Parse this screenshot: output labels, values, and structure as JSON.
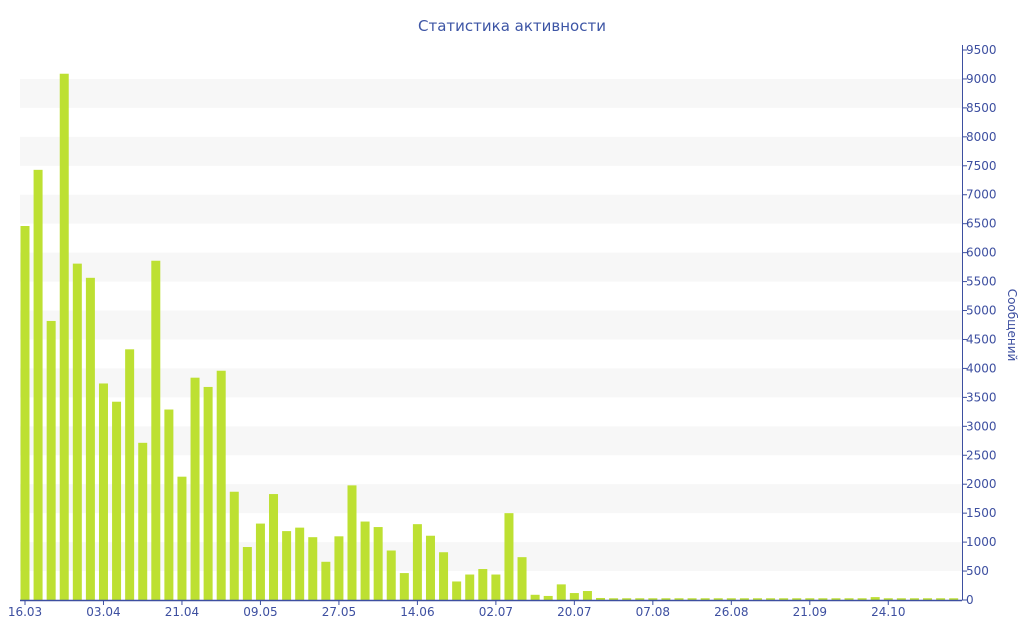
{
  "chart_data": {
    "type": "bar",
    "title": "Статистика активности",
    "xlabel": "",
    "ylabel": "Сообщений",
    "ylim": [
      0,
      9500
    ],
    "ytick_step": 500,
    "y_axis_side": "right",
    "grid": "alternating horizontal bands",
    "bar_color": "#bde032",
    "axis_color": "#3d4fa0",
    "x_tick_labels": [
      {
        "index": 0,
        "label": "16.03"
      },
      {
        "index": 6,
        "label": "03.04"
      },
      {
        "index": 12,
        "label": "21.04"
      },
      {
        "index": 18,
        "label": "09.05"
      },
      {
        "index": 24,
        "label": "27.05"
      },
      {
        "index": 30,
        "label": "14.06"
      },
      {
        "index": 36,
        "label": "02.07"
      },
      {
        "index": 42,
        "label": "20.07"
      },
      {
        "index": 48,
        "label": "07.08"
      },
      {
        "index": 54,
        "label": "26.08"
      },
      {
        "index": 60,
        "label": "21.09"
      },
      {
        "index": 66,
        "label": "24.10"
      }
    ],
    "values": [
      6460,
      7430,
      4820,
      9090,
      5810,
      5565,
      3740,
      3425,
      4330,
      2715,
      5860,
      3290,
      2130,
      3840,
      3680,
      3960,
      1870,
      915,
      1320,
      1830,
      1190,
      1250,
      1085,
      660,
      1100,
      1980,
      1355,
      1260,
      855,
      465,
      1310,
      1110,
      825,
      320,
      440,
      535,
      440,
      1500,
      740,
      90,
      70,
      270,
      120,
      155,
      35,
      30,
      30,
      30,
      30,
      30,
      30,
      30,
      30,
      30,
      30,
      30,
      30,
      30,
      30,
      30,
      30,
      30,
      30,
      30,
      30,
      50,
      30,
      30,
      30,
      30,
      30,
      30
    ]
  }
}
